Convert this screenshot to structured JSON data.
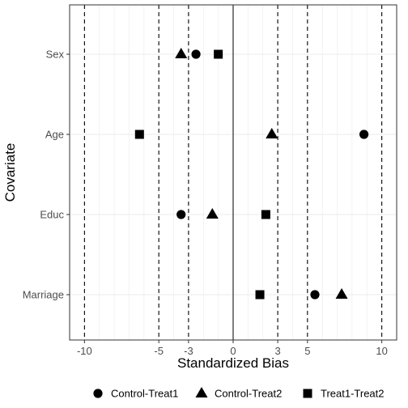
{
  "chart_data": {
    "type": "scatter",
    "xlabel": "Standardized Bias",
    "ylabel": "Covariate",
    "xlim": [
      -11,
      11
    ],
    "x_ticks": [
      -10,
      -5,
      -3,
      0,
      3,
      5,
      10
    ],
    "x_tick_labels": [
      "-10",
      "-5",
      "-3",
      "0",
      "3",
      "5",
      "10"
    ],
    "categories": [
      "Sex",
      "Age",
      "Educ",
      "Marriage"
    ],
    "reference_lines": {
      "solid": [
        0
      ],
      "dashed": [
        -10,
        -5,
        -3,
        3,
        5,
        10
      ]
    },
    "grid": true,
    "legend_position": "bottom",
    "series": [
      {
        "name": "Control-Treat1",
        "shape": "circle",
        "values": [
          -2.5,
          8.8,
          -3.5,
          5.5
        ]
      },
      {
        "name": "Control-Treat2",
        "shape": "triangle",
        "values": [
          -3.5,
          2.6,
          -1.4,
          7.3
        ]
      },
      {
        "name": "Treat1-Treat2",
        "shape": "square",
        "values": [
          -1.0,
          -6.3,
          2.2,
          1.8
        ]
      }
    ],
    "colors": {
      "points": "#000000",
      "grid": "#ebebeb",
      "panel_border": "#333333",
      "zero_line": "#555555"
    }
  }
}
